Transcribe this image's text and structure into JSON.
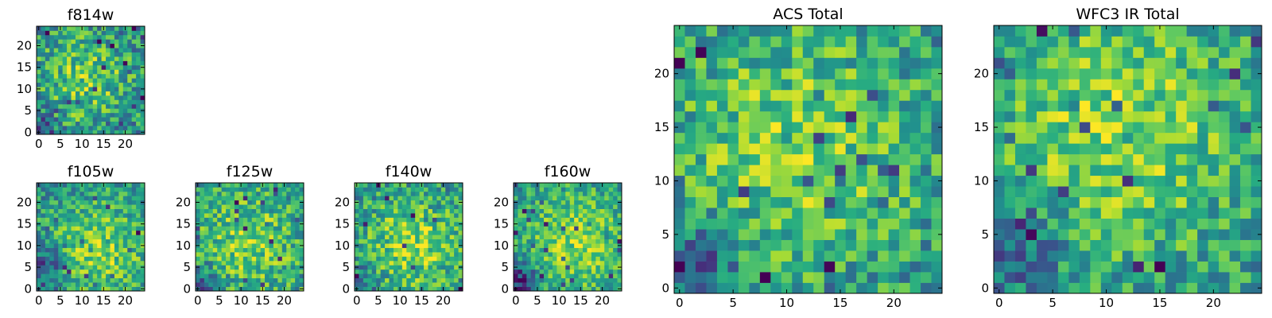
{
  "chart_data": [
    {
      "type": "heatmap",
      "title": "f814w",
      "grid_size": 25,
      "xticks": [
        0,
        5,
        10,
        15,
        20
      ],
      "yticks": [
        0,
        5,
        10,
        15,
        20
      ],
      "xlim": [
        -0.5,
        24.5
      ],
      "ylim": [
        -0.5,
        24.5
      ],
      "grid": false,
      "colormap": "viridis",
      "pattern": {
        "seed": 11,
        "blob_center": [
          11,
          12
        ],
        "blob_radius": 8,
        "blob_strength": 0.32,
        "low_corner": [
          0,
          0
        ],
        "low_strength": 0.28,
        "base": 0.46,
        "noise": 0.55
      }
    },
    {
      "type": "heatmap",
      "title": "f105w",
      "grid_size": 25,
      "xticks": [
        0,
        5,
        10,
        15,
        20
      ],
      "yticks": [
        0,
        5,
        10,
        15,
        20
      ],
      "xlim": [
        -0.5,
        24.5
      ],
      "ylim": [
        -0.5,
        24.5
      ],
      "grid": false,
      "colormap": "viridis",
      "pattern": {
        "seed": 23,
        "blob_center": [
          14,
          9
        ],
        "blob_radius": 9,
        "blob_strength": 0.34,
        "low_corner": [
          2,
          6
        ],
        "low_strength": 0.3,
        "base": 0.48,
        "noise": 0.45
      }
    },
    {
      "type": "heatmap",
      "title": "f125w",
      "grid_size": 25,
      "xticks": [
        0,
        5,
        10,
        15,
        20
      ],
      "yticks": [
        0,
        5,
        10,
        15,
        20
      ],
      "xlim": [
        -0.5,
        24.5
      ],
      "ylim": [
        -0.5,
        24.5
      ],
      "grid": false,
      "colormap": "viridis",
      "pattern": {
        "seed": 37,
        "blob_center": [
          12,
          10
        ],
        "blob_radius": 10,
        "blob_strength": 0.28,
        "low_corner": [
          2,
          1
        ],
        "low_strength": 0.26,
        "base": 0.5,
        "noise": 0.5
      }
    },
    {
      "type": "heatmap",
      "title": "f140w",
      "grid_size": 25,
      "xticks": [
        0,
        5,
        10,
        15,
        20
      ],
      "yticks": [
        0,
        5,
        10,
        15,
        20
      ],
      "xlim": [
        -0.5,
        24.5
      ],
      "ylim": [
        -0.5,
        24.5
      ],
      "grid": false,
      "colormap": "viridis",
      "pattern": {
        "seed": 41,
        "blob_center": [
          13,
          10
        ],
        "blob_radius": 9,
        "blob_strength": 0.34,
        "low_corner": [
          1,
          1
        ],
        "low_strength": 0.22,
        "base": 0.48,
        "noise": 0.5
      }
    },
    {
      "type": "heatmap",
      "title": "f160w",
      "grid_size": 25,
      "xticks": [
        0,
        5,
        10,
        15,
        20
      ],
      "yticks": [
        0,
        5,
        10,
        15,
        20
      ],
      "xlim": [
        -0.5,
        24.5
      ],
      "ylim": [
        -0.5,
        24.5
      ],
      "grid": false,
      "colormap": "viridis",
      "pattern": {
        "seed": 53,
        "blob_center": [
          14,
          11
        ],
        "blob_radius": 9,
        "blob_strength": 0.34,
        "low_corner": [
          1,
          2
        ],
        "low_strength": 0.42,
        "base": 0.5,
        "noise": 0.42
      }
    },
    {
      "type": "heatmap",
      "title": "ACS Total",
      "grid_size": 25,
      "xticks": [
        0,
        5,
        10,
        15,
        20
      ],
      "yticks": [
        0,
        5,
        10,
        15,
        20
      ],
      "xlim": [
        -0.5,
        24.5
      ],
      "ylim": [
        -0.5,
        24.5
      ],
      "grid": false,
      "colormap": "viridis",
      "pattern": {
        "seed": 67,
        "blob_center": [
          11,
          13
        ],
        "blob_radius": 9,
        "blob_strength": 0.3,
        "low_corner": [
          1,
          2
        ],
        "low_strength": 0.32,
        "base": 0.5,
        "noise": 0.48
      }
    },
    {
      "type": "heatmap",
      "title": "WFC3 IR Total",
      "grid_size": 25,
      "xticks": [
        0,
        5,
        10,
        15,
        20
      ],
      "yticks": [
        0,
        5,
        10,
        15,
        20
      ],
      "xlim": [
        -0.5,
        24.5
      ],
      "ylim": [
        -0.5,
        24.5
      ],
      "grid": false,
      "colormap": "viridis",
      "pattern": {
        "seed": 79,
        "blob_center": [
          11,
          15
        ],
        "blob_radius": 9,
        "blob_strength": 0.3,
        "low_corner": [
          2,
          4
        ],
        "low_strength": 0.26,
        "base": 0.52,
        "noise": 0.45
      }
    }
  ]
}
